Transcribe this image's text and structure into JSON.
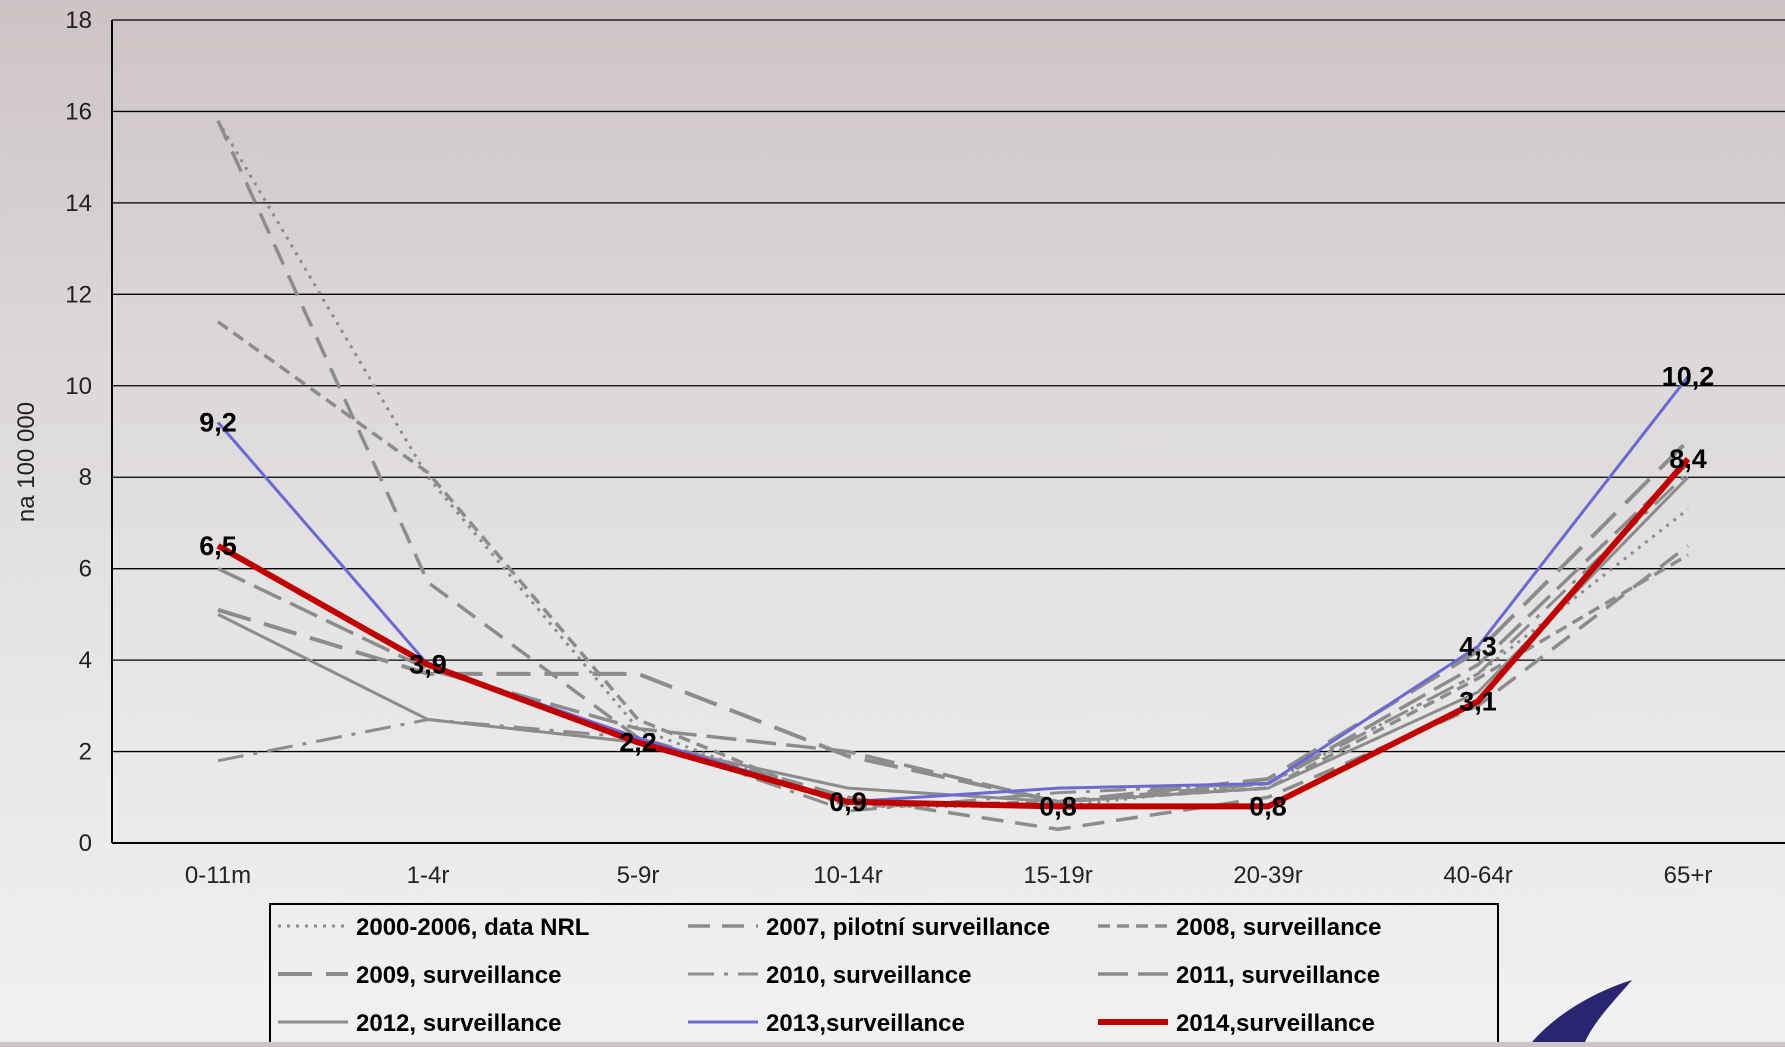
{
  "chart_data": {
    "type": "line",
    "xlabel": "",
    "ylabel": "na 100 000",
    "ylim": [
      0,
      18
    ],
    "yticks": [
      0,
      2,
      4,
      6,
      8,
      10,
      12,
      14,
      16,
      18
    ],
    "grid": true,
    "legend_position": "bottom",
    "categories": [
      "0-11m",
      "1-4r",
      "5-9r",
      "10-14r",
      "15-19r",
      "20-39r",
      "40-64r",
      "65+r"
    ],
    "series": [
      {
        "name": "2000-2006, data NRL",
        "values": [
          15.8,
          8.0,
          2.5,
          0.8,
          0.8,
          1.3,
          3.7,
          7.3
        ],
        "color": "#8c8c8c",
        "style": "dotted"
      },
      {
        "name": "2007, pilotní surveillance",
        "values": [
          15.8,
          5.7,
          2.3,
          1.0,
          0.3,
          1.0,
          3.0,
          6.5
        ],
        "color": "#8c8c8c",
        "style": "dash"
      },
      {
        "name": "2008, surveillance",
        "values": [
          11.4,
          8.1,
          2.7,
          0.8,
          0.9,
          1.2,
          3.6,
          6.3
        ],
        "color": "#8c8c8c",
        "style": "shortdash"
      },
      {
        "name": "2009, surveillance",
        "values": [
          5.1,
          3.7,
          3.7,
          1.9,
          0.9,
          1.4,
          4.2,
          8.8
        ],
        "color": "#8c8c8c",
        "style": "longdash"
      },
      {
        "name": "2010, surveillance",
        "values": [
          1.8,
          2.7,
          2.3,
          0.7,
          1.1,
          1.3,
          3.7,
          8.1
        ],
        "color": "#8c8c8c",
        "style": "dashdot"
      },
      {
        "name": "2011, surveillance",
        "values": [
          6.0,
          3.8,
          2.5,
          2.0,
          0.9,
          1.3,
          3.9,
          8.3
        ],
        "color": "#8c8c8c",
        "style": "longdash2"
      },
      {
        "name": "2012, surveillance",
        "values": [
          5.0,
          2.7,
          2.2,
          1.2,
          0.9,
          1.2,
          3.3,
          8.0
        ],
        "color": "#8c8c8c",
        "style": "solid"
      },
      {
        "name": "2013,surveillance",
        "values": [
          9.2,
          3.9,
          2.3,
          0.9,
          1.2,
          1.3,
          4.3,
          10.2
        ],
        "color": "#6a6ad2",
        "style": "solid"
      },
      {
        "name": "2014,surveillance",
        "values": [
          6.5,
          3.9,
          2.2,
          0.9,
          0.8,
          0.8,
          3.1,
          8.4
        ],
        "color": "#c00000",
        "style": "thick"
      }
    ],
    "data_labels": [
      {
        "category": "0-11m",
        "value": 9.2,
        "text": "9,2"
      },
      {
        "category": "0-11m",
        "value": 6.5,
        "text": "6,5"
      },
      {
        "category": "1-4r",
        "value": 3.9,
        "text": "3,9"
      },
      {
        "category": "5-9r",
        "value": 2.2,
        "text": "2,2"
      },
      {
        "category": "10-14r",
        "value": 0.9,
        "text": "0,9"
      },
      {
        "category": "15-19r",
        "value": 0.8,
        "text": "0,8"
      },
      {
        "category": "20-39r",
        "value": 0.8,
        "text": "0,8"
      },
      {
        "category": "40-64r",
        "value": 4.3,
        "text": "4,3"
      },
      {
        "category": "40-64r",
        "value": 3.1,
        "text": "3,1"
      },
      {
        "category": "65+r",
        "value": 10.2,
        "text": "10,2"
      },
      {
        "category": "65+r",
        "value": 8.4,
        "text": "8,4"
      }
    ]
  },
  "logo": {
    "color": "#2a2570",
    "name": "swoosh-logo"
  }
}
